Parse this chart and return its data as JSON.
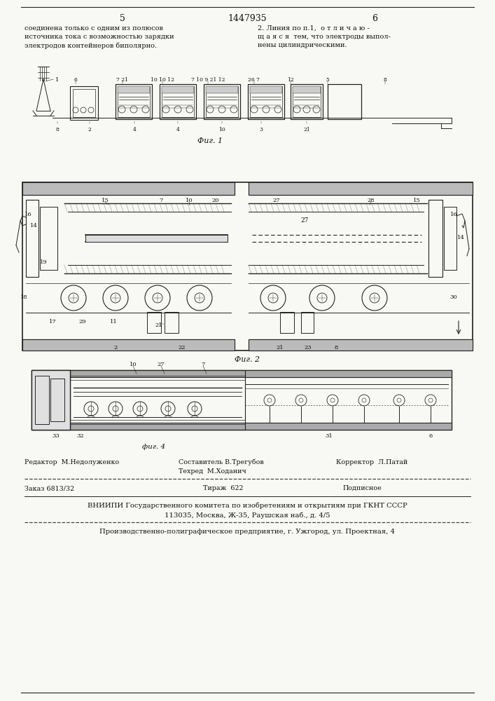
{
  "page_width": 7.07,
  "page_height": 10.0,
  "bg_color": "#f8f8f4",
  "header": {
    "page_left": "5",
    "title": "1447935",
    "page_right": "6"
  },
  "col_left_text": [
    "соединена только с одним из полюсов",
    "источника тока с возможностью зарядки",
    "электродов контейнеров биполярно."
  ],
  "col_right_text": [
    "2. Линия по п.1,  о т л и ч а ю -",
    "щ а я с я  тем, что электроды выпол-",
    "нены цилиндрическими."
  ],
  "fig1_caption": "Фиг. 1",
  "fig2_caption": "Фиг. 2",
  "fig4_caption": "фиг. 4",
  "editor_line1": "Редактор  М.Недолуженко",
  "editor_line2": "Составитель В.Трегубов",
  "editor_line3": "Корректор  Л.Патай",
  "tech_line": "Техред  М.Ходанич",
  "order_part1": "Заказ 6813/32",
  "order_part2": "Тираж  622",
  "order_part3": "Подписное",
  "vniiipi_line1": "ВНИИПИ Государственного комитета по изобретениям и открытиям при ГКНТ СССР",
  "vniiipi_line2": "113035, Москва, Ж-35, Раушская наб., д. 4/5",
  "production_line": "Производственно-полиграфическое предприятие, г. Ужгород, ул. Проектная, 4",
  "text_color": "#111111",
  "line_color": "#222222",
  "dashed_line_color": "#444444",
  "hatch_color": "#555555"
}
